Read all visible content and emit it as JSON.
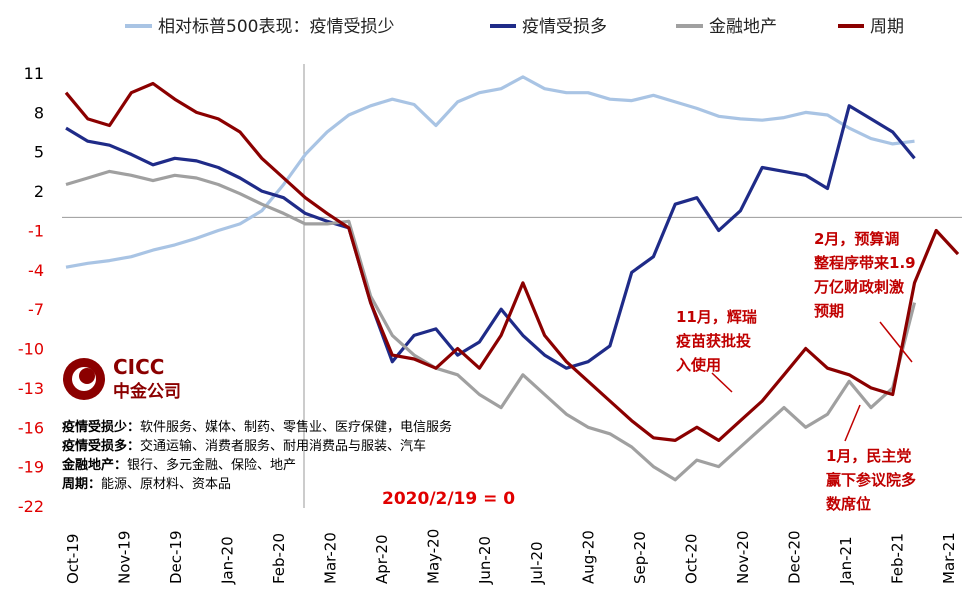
{
  "chart_data": {
    "type": "line",
    "yticks": [
      11,
      8,
      5,
      2,
      -1,
      -4,
      -7,
      -10,
      -13,
      -16,
      -19,
      -22
    ],
    "ylim": [
      -22,
      12
    ],
    "x_months": [
      "Oct-19",
      "Nov-19",
      "Dec-19",
      "Jan-20",
      "Feb-20",
      "Mar-20",
      "Apr-20",
      "May-20",
      "Jun-20",
      "Jul-20",
      "Aug-20",
      "Sep-20",
      "Oct-20",
      "Nov-20",
      "Dec-20",
      "Jan-21",
      "Feb-21",
      "Mar-21"
    ],
    "colors": {
      "positive_tick": "#000000",
      "negative_tick": "#e00000",
      "annotation": "#c00000"
    },
    "series": [
      {
        "name": "相对标普500表现：疫情受损少",
        "color": "#a9c4e4",
        "points": [
          [
            0,
            -3.8
          ],
          [
            1,
            -3.5
          ],
          [
            2,
            -3.3
          ],
          [
            3,
            -3.0
          ],
          [
            4,
            -2.5
          ],
          [
            5,
            -2.1
          ],
          [
            6,
            -1.6
          ],
          [
            7,
            -1.0
          ],
          [
            8,
            -0.5
          ],
          [
            9,
            0.5
          ],
          [
            10,
            2.5
          ],
          [
            11,
            4.8
          ],
          [
            12,
            6.5
          ],
          [
            13,
            7.8
          ],
          [
            14,
            8.5
          ],
          [
            15,
            9.0
          ],
          [
            16,
            8.6
          ],
          [
            17,
            7.0
          ],
          [
            18,
            8.8
          ],
          [
            19,
            9.5
          ],
          [
            20,
            9.8
          ],
          [
            21,
            10.7
          ],
          [
            22,
            9.8
          ],
          [
            23,
            9.5
          ],
          [
            24,
            9.5
          ],
          [
            25,
            9.0
          ],
          [
            26,
            8.9
          ],
          [
            27,
            9.3
          ],
          [
            28,
            8.8
          ],
          [
            29,
            8.3
          ],
          [
            30,
            7.7
          ],
          [
            31,
            7.5
          ],
          [
            32,
            7.4
          ],
          [
            33,
            7.6
          ],
          [
            34,
            8.0
          ],
          [
            35,
            7.8
          ],
          [
            36,
            6.8
          ],
          [
            37,
            6.0
          ],
          [
            38,
            5.6
          ],
          [
            39,
            5.8
          ]
        ]
      },
      {
        "name": "疫情受损多",
        "color": "#1f2b88",
        "points": [
          [
            0,
            6.8
          ],
          [
            1,
            5.8
          ],
          [
            2,
            5.5
          ],
          [
            3,
            4.8
          ],
          [
            4,
            4.0
          ],
          [
            5,
            4.5
          ],
          [
            6,
            4.3
          ],
          [
            7,
            3.8
          ],
          [
            8,
            3.0
          ],
          [
            9,
            2.0
          ],
          [
            10,
            1.5
          ],
          [
            11,
            0.3
          ],
          [
            12,
            -0.3
          ],
          [
            13,
            -0.8
          ],
          [
            14,
            -6.5
          ],
          [
            15,
            -11.0
          ],
          [
            16,
            -9.0
          ],
          [
            17,
            -8.5
          ],
          [
            18,
            -10.5
          ],
          [
            19,
            -9.5
          ],
          [
            20,
            -7.0
          ],
          [
            21,
            -9.0
          ],
          [
            22,
            -10.5
          ],
          [
            23,
            -11.5
          ],
          [
            24,
            -11.0
          ],
          [
            25,
            -9.8
          ],
          [
            26,
            -4.2
          ],
          [
            27,
            -3.0
          ],
          [
            28,
            1.0
          ],
          [
            29,
            1.5
          ],
          [
            30,
            -1.0
          ],
          [
            31,
            0.5
          ],
          [
            32,
            3.8
          ],
          [
            33,
            3.5
          ],
          [
            34,
            3.2
          ],
          [
            35,
            2.2
          ],
          [
            36,
            8.5
          ],
          [
            37,
            7.5
          ],
          [
            38,
            6.5
          ],
          [
            39,
            4.5
          ]
        ]
      },
      {
        "name": "金融地产",
        "color": "#a0a0a0",
        "points": [
          [
            0,
            2.5
          ],
          [
            1,
            3.0
          ],
          [
            2,
            3.5
          ],
          [
            3,
            3.2
          ],
          [
            4,
            2.8
          ],
          [
            5,
            3.2
          ],
          [
            6,
            3.0
          ],
          [
            7,
            2.5
          ],
          [
            8,
            1.8
          ],
          [
            9,
            1.0
          ],
          [
            10,
            0.3
          ],
          [
            11,
            -0.5
          ],
          [
            12,
            -0.5
          ],
          [
            13,
            -0.3
          ],
          [
            14,
            -6.0
          ],
          [
            15,
            -9.0
          ],
          [
            16,
            -10.5
          ],
          [
            17,
            -11.5
          ],
          [
            18,
            -12.0
          ],
          [
            19,
            -13.5
          ],
          [
            20,
            -14.5
          ],
          [
            21,
            -12.0
          ],
          [
            22,
            -13.5
          ],
          [
            23,
            -15.0
          ],
          [
            24,
            -16.0
          ],
          [
            25,
            -16.5
          ],
          [
            26,
            -17.5
          ],
          [
            27,
            -19.0
          ],
          [
            28,
            -20.0
          ],
          [
            29,
            -18.5
          ],
          [
            30,
            -19.0
          ],
          [
            31,
            -17.5
          ],
          [
            32,
            -16.0
          ],
          [
            33,
            -14.5
          ],
          [
            34,
            -16.0
          ],
          [
            35,
            -15.0
          ],
          [
            36,
            -12.5
          ],
          [
            37,
            -14.5
          ],
          [
            38,
            -13.0
          ],
          [
            39,
            -6.5
          ]
        ]
      },
      {
        "name": "周期",
        "color": "#8b0000",
        "points": [
          [
            0,
            9.5
          ],
          [
            1,
            7.5
          ],
          [
            2,
            7.0
          ],
          [
            3,
            9.5
          ],
          [
            4,
            10.2
          ],
          [
            5,
            9.0
          ],
          [
            6,
            8.0
          ],
          [
            7,
            7.5
          ],
          [
            8,
            6.5
          ],
          [
            9,
            4.5
          ],
          [
            10,
            3.0
          ],
          [
            11,
            1.5
          ],
          [
            12,
            0.3
          ],
          [
            13,
            -0.8
          ],
          [
            14,
            -6.5
          ],
          [
            15,
            -10.5
          ],
          [
            16,
            -10.8
          ],
          [
            17,
            -11.5
          ],
          [
            18,
            -10.0
          ],
          [
            19,
            -11.5
          ],
          [
            20,
            -9.0
          ],
          [
            21,
            -5.0
          ],
          [
            22,
            -9.0
          ],
          [
            23,
            -11.0
          ],
          [
            24,
            -12.5
          ],
          [
            25,
            -14.0
          ],
          [
            26,
            -15.5
          ],
          [
            27,
            -16.8
          ],
          [
            28,
            -17.0
          ],
          [
            29,
            -16.0
          ],
          [
            30,
            -17.0
          ],
          [
            31,
            -15.5
          ],
          [
            32,
            -14.0
          ],
          [
            33,
            -12.0
          ],
          [
            34,
            -10.0
          ],
          [
            35,
            -11.5
          ],
          [
            36,
            -12.0
          ],
          [
            37,
            -13.0
          ],
          [
            38,
            -13.5
          ],
          [
            39,
            -5.0
          ],
          [
            40,
            -1.0
          ],
          [
            41,
            -2.8
          ]
        ]
      }
    ]
  },
  "annotations": {
    "nov": [
      "11月，辉瑞",
      "疫苗获批投",
      "入使用"
    ],
    "feb": [
      "2月，预算调",
      "整程序带来1.9",
      "万亿财政刺激",
      "预期"
    ],
    "jan": [
      "1月，民主党",
      "赢下参议院多",
      "数席位"
    ]
  },
  "base_label": "2020/2/19 = 0",
  "logo": {
    "name_en": "CICC",
    "name_cn": "中金公司"
  },
  "notes": [
    {
      "label": "疫情受损少：",
      "text": "软件服务、媒体、制药、零售业、医疗保健，电信服务"
    },
    {
      "label": "疫情受损多：",
      "text": "交通运输、消费者服务、耐用消费品与服装、汽车"
    },
    {
      "label": "金融地产：",
      "text": "银行、多元金融、保险、地产"
    },
    {
      "label": "周期：",
      "text": "能源、原材料、资本品"
    }
  ]
}
